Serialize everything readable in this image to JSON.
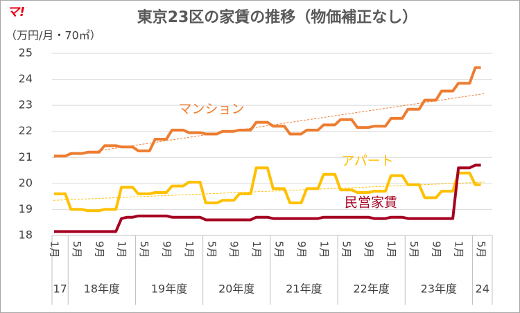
{
  "logo": "マ!",
  "chart_data": {
    "type": "line",
    "title": "東京23区の家賃の推移（物価補正なし）",
    "y_label": "（万円/月・70㎡）",
    "categories": [
      "1月",
      null,
      null,
      null,
      "5月",
      null,
      null,
      null,
      "9月",
      null,
      null,
      null,
      "1月",
      null,
      null,
      null,
      "5月",
      null,
      null,
      null,
      "9月",
      null,
      null,
      null,
      "1月",
      null,
      null,
      null,
      "5月",
      null,
      null,
      null,
      "9月",
      null,
      null,
      null,
      "1月",
      null,
      null,
      null,
      "5月",
      null,
      null,
      null,
      "9月",
      null,
      null,
      null,
      "1月",
      null,
      null,
      null,
      "5月",
      null,
      null,
      null,
      "9月",
      null,
      null,
      null,
      "1月",
      null,
      null,
      null,
      "5月",
      null,
      null,
      null,
      "9月",
      null,
      null,
      null,
      "1月",
      null,
      null,
      null,
      "5月"
    ],
    "fiscal_years": [
      "17",
      "18年度",
      "19年度",
      "20年度",
      "21年度",
      "22年度",
      "23年度",
      "24"
    ],
    "series": [
      {
        "name": "マンション",
        "color": "#ed7d31",
        "trend": [
          21.0,
          23.45
        ],
        "values": [
          21.05,
          21.05,
          21.05,
          21.15,
          21.15,
          21.15,
          21.2,
          21.2,
          21.2,
          21.45,
          21.45,
          21.45,
          21.4,
          21.4,
          21.4,
          21.25,
          21.25,
          21.25,
          21.7,
          21.7,
          21.7,
          22.05,
          22.05,
          22.05,
          21.95,
          21.95,
          21.95,
          21.9,
          21.9,
          21.9,
          22.0,
          22.0,
          22.0,
          22.05,
          22.05,
          22.05,
          22.35,
          22.35,
          22.35,
          22.2,
          22.2,
          22.2,
          21.9,
          21.9,
          21.9,
          22.05,
          22.05,
          22.05,
          22.25,
          22.25,
          22.25,
          22.45,
          22.45,
          22.45,
          22.15,
          22.15,
          22.15,
          22.2,
          22.2,
          22.2,
          22.5,
          22.5,
          22.5,
          22.85,
          22.85,
          22.85,
          23.2,
          23.2,
          23.2,
          23.55,
          23.55,
          23.55,
          23.85,
          23.85,
          23.85,
          24.45,
          24.45
        ]
      },
      {
        "name": "アパート",
        "color": "#ffc000",
        "trend": [
          19.35,
          20.05
        ],
        "values": [
          19.6,
          19.6,
          19.6,
          19.0,
          19.0,
          19.0,
          18.95,
          18.95,
          18.95,
          19.0,
          19.0,
          19.0,
          19.85,
          19.85,
          19.85,
          19.6,
          19.6,
          19.6,
          19.65,
          19.65,
          19.65,
          19.9,
          19.9,
          19.9,
          20.05,
          20.05,
          20.05,
          19.25,
          19.25,
          19.25,
          19.35,
          19.35,
          19.35,
          19.6,
          19.6,
          19.6,
          20.6,
          20.6,
          20.6,
          19.8,
          19.8,
          19.8,
          19.25,
          19.25,
          19.25,
          19.8,
          19.8,
          19.8,
          20.35,
          20.35,
          20.35,
          19.75,
          19.75,
          19.75,
          19.65,
          19.65,
          19.65,
          19.7,
          19.7,
          19.7,
          20.3,
          20.3,
          20.3,
          19.95,
          19.95,
          19.95,
          19.45,
          19.45,
          19.45,
          19.7,
          19.7,
          19.7,
          20.4,
          20.4,
          20.4,
          19.95,
          19.95
        ]
      },
      {
        "name": "民営家賃",
        "color": "#a50021",
        "values": [
          18.15,
          18.15,
          18.15,
          18.15,
          18.15,
          18.15,
          18.15,
          18.15,
          18.15,
          18.15,
          18.15,
          18.15,
          18.65,
          18.7,
          18.7,
          18.75,
          18.75,
          18.75,
          18.75,
          18.75,
          18.75,
          18.7,
          18.7,
          18.7,
          18.7,
          18.7,
          18.7,
          18.6,
          18.6,
          18.6,
          18.6,
          18.6,
          18.6,
          18.6,
          18.6,
          18.6,
          18.7,
          18.7,
          18.7,
          18.65,
          18.65,
          18.65,
          18.65,
          18.65,
          18.65,
          18.65,
          18.65,
          18.65,
          18.7,
          18.7,
          18.7,
          18.7,
          18.7,
          18.7,
          18.7,
          18.7,
          18.7,
          18.65,
          18.65,
          18.65,
          18.7,
          18.7,
          18.7,
          18.65,
          18.65,
          18.65,
          18.65,
          18.65,
          18.65,
          18.65,
          18.65,
          18.65,
          20.6,
          20.6,
          20.6,
          20.7,
          20.7
        ]
      }
    ],
    "ylim": [
      18,
      25
    ],
    "yticks": [
      18,
      19,
      20,
      21,
      22,
      23,
      24,
      25
    ],
    "grid": true
  }
}
